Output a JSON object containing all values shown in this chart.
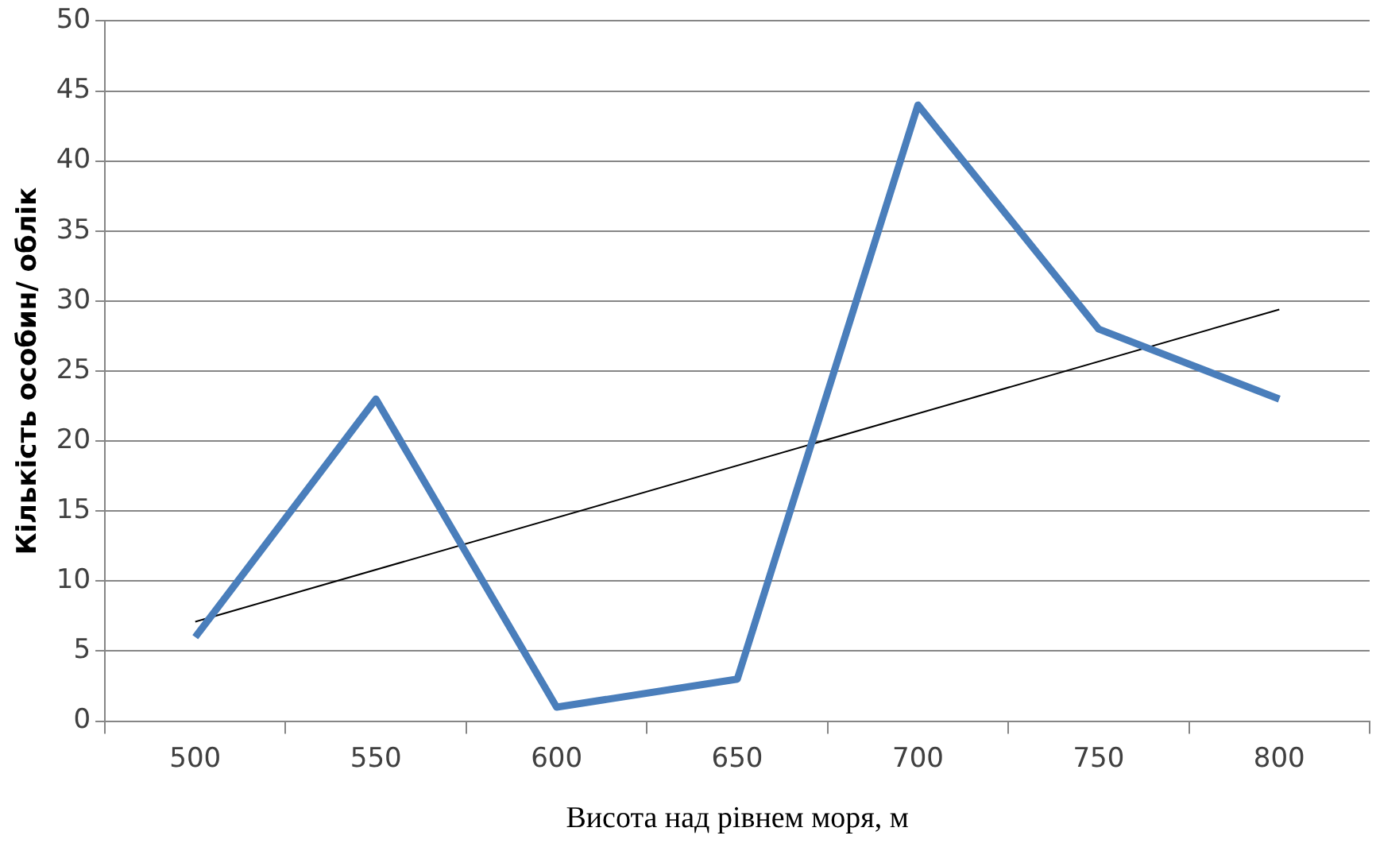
{
  "chart_data": {
    "type": "line",
    "xlabel": "Висота над рівнем моря, м",
    "ylabel": "Кількість особин/ облік",
    "categories": [
      "500",
      "550",
      "600",
      "650",
      "700",
      "750",
      "800"
    ],
    "series": [
      {
        "color": "#4a7ebb",
        "values": [
          6,
          23,
          1,
          3,
          44,
          28,
          23
        ]
      },
      {
        "type": "line",
        "color": "#000000",
        "x": [
          "500",
          "800"
        ],
        "values": [
          7.1,
          29.4
        ]
      }
    ],
    "ylim": [
      0,
      50
    ],
    "yticks": [
      0,
      5,
      10,
      15,
      20,
      25,
      30,
      35,
      40,
      45,
      50
    ],
    "grid": "y",
    "legend": false,
    "marker": "none"
  }
}
